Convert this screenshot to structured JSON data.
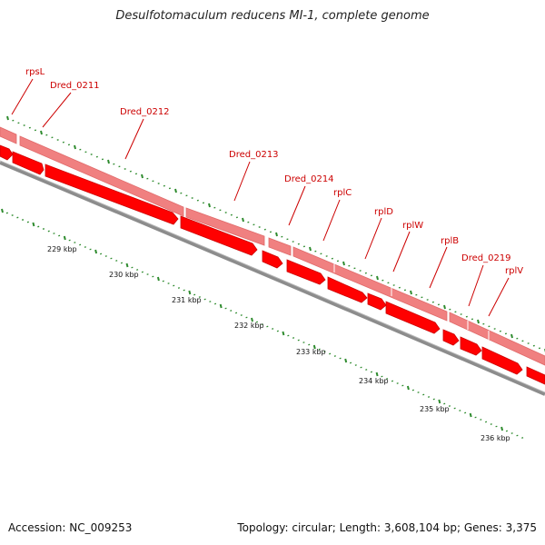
{
  "title": "Desulfotomaculum reducens MI-1, complete genome",
  "footer": {
    "accession": "Accession: NC_009253",
    "summary": "Topology: circular; Length: 3,608,104 bp; Genes: 3,375"
  },
  "colors": {
    "gene_label": "#cc0000",
    "gene_fill": "#ff0000",
    "gene_upper": "#f08080",
    "backbone": "#808080",
    "ticks": "#2e8b2e"
  },
  "scale_labels": [
    "229 kbp",
    "230 kbp",
    "231 kbp",
    "232 kbp",
    "233 kbp",
    "234 kbp",
    "235 kbp",
    "236 kbp"
  ],
  "gene_labels": [
    "rpsL",
    "Dred_0211",
    "Dred_0212",
    "Dred_0213",
    "Dred_0214",
    "rplC",
    "rplD",
    "rplW",
    "rplB",
    "Dred_0219",
    "rplV"
  ]
}
